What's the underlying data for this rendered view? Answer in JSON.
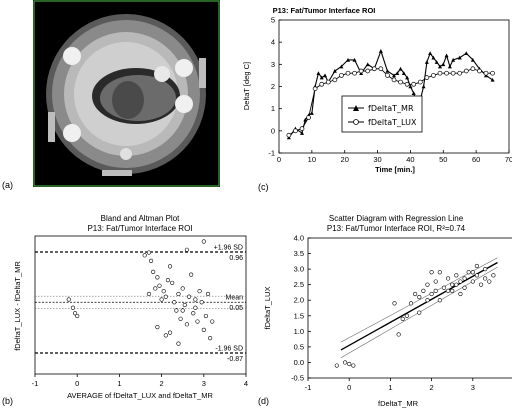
{
  "panels": {
    "a": "(a)",
    "b": "(b)",
    "c": "(c)",
    "d": "(d)"
  },
  "chart_data": [
    {
      "id": "c",
      "type": "line",
      "title": "P13: Fat/Tumor Interface ROI",
      "xlabel": "Time [min.]",
      "ylabel": "DeltaT [deg C]",
      "xlim": [
        0,
        70
      ],
      "ylim": [
        -1,
        5
      ],
      "xticks": [
        0,
        10,
        20,
        30,
        40,
        50,
        60,
        70
      ],
      "yticks": [
        -1,
        0,
        1,
        2,
        3,
        4,
        5
      ],
      "legend_position": "center-right",
      "series": [
        {
          "name": "fDeltaT_MR",
          "marker": "triangle",
          "x": [
            3,
            5,
            7,
            8,
            9,
            10,
            11,
            12,
            13,
            14,
            15,
            17,
            19,
            21,
            23,
            25,
            27,
            29,
            31,
            33,
            35,
            36,
            37,
            38,
            39,
            40,
            41,
            42,
            43,
            44,
            45,
            46,
            47,
            48,
            49,
            50,
            51,
            52,
            53,
            55,
            57,
            59,
            61,
            63,
            65
          ],
          "y": [
            -0.3,
            0.1,
            -0.1,
            0.5,
            0.7,
            0.8,
            2.0,
            2.6,
            2.4,
            2.5,
            2.2,
            2.7,
            2.9,
            3.2,
            3.2,
            2.6,
            3.0,
            2.8,
            3.6,
            2.7,
            2.5,
            2.6,
            2.8,
            2.6,
            2.4,
            2.0,
            1.7,
            1.2,
            1.4,
            2.0,
            3.1,
            3.5,
            3.3,
            3.1,
            2.9,
            3.0,
            3.4,
            2.9,
            3.2,
            3.3,
            3.5,
            3.2,
            2.8,
            2.5,
            2.3
          ]
        },
        {
          "name": "fDeltaT_LUX",
          "marker": "circle",
          "x": [
            3,
            5,
            7,
            9,
            11,
            13,
            15,
            17,
            19,
            21,
            23,
            25,
            27,
            29,
            31,
            33,
            35,
            37,
            39,
            41,
            43,
            45,
            47,
            49,
            51,
            53,
            55,
            57,
            59,
            61,
            63,
            65
          ],
          "y": [
            -0.2,
            0.0,
            0.1,
            0.6,
            1.9,
            2.1,
            2.2,
            2.3,
            2.5,
            2.6,
            2.6,
            2.7,
            2.7,
            2.8,
            2.8,
            2.5,
            2.3,
            2.2,
            2.1,
            2.1,
            2.2,
            2.4,
            2.5,
            2.6,
            2.6,
            2.6,
            2.6,
            2.7,
            2.8,
            2.7,
            2.6,
            2.6
          ]
        }
      ]
    },
    {
      "id": "b",
      "type": "scatter",
      "title": "Bland and Altman Plot",
      "subtitle": "P13: Fat/Tumor Interface ROI",
      "xlabel": "AVERAGE of fDeltaT_LUX and fDeltaT_MR",
      "ylabel": "fDeltaT_LUX - fDeltaT_MR",
      "xlim": [
        -1,
        4
      ],
      "ylim": [
        -1.25,
        1.25
      ],
      "xticks": [
        -1,
        0,
        1,
        2,
        3,
        4
      ],
      "reference_lines": [
        {
          "label": "+1.96 SD",
          "value": 0.96
        },
        {
          "label": "Mean",
          "value": 0.05
        },
        {
          "label": "-1.96 SD",
          "value": -0.87
        }
      ],
      "points": [
        [
          -0.2,
          0.1
        ],
        [
          -0.1,
          -0.05
        ],
        [
          -0.05,
          -0.15
        ],
        [
          0.0,
          -0.2
        ],
        [
          1.6,
          0.9
        ],
        [
          1.7,
          0.95
        ],
        [
          1.75,
          0.8
        ],
        [
          1.8,
          0.6
        ],
        [
          1.85,
          0.3
        ],
        [
          1.9,
          0.5
        ],
        [
          1.95,
          0.35
        ],
        [
          2.0,
          0.1
        ],
        [
          2.05,
          0.25
        ],
        [
          2.1,
          0.15
        ],
        [
          2.15,
          0.45
        ],
        [
          2.2,
          0.7
        ],
        [
          2.25,
          0.4
        ],
        [
          2.3,
          0.05
        ],
        [
          2.35,
          -0.1
        ],
        [
          2.4,
          0.2
        ],
        [
          2.45,
          -0.25
        ],
        [
          2.5,
          0.3
        ],
        [
          2.55,
          0.0
        ],
        [
          2.6,
          -0.35
        ],
        [
          2.65,
          0.15
        ],
        [
          2.7,
          0.55
        ],
        [
          2.75,
          -0.15
        ],
        [
          2.8,
          0.1
        ],
        [
          2.85,
          -0.3
        ],
        [
          2.9,
          0.25
        ],
        [
          2.95,
          0.05
        ],
        [
          3.0,
          -0.45
        ],
        [
          3.05,
          -0.2
        ],
        [
          3.1,
          0.2
        ],
        [
          3.15,
          -0.6
        ],
        [
          3.2,
          -0.3
        ],
        [
          2.2,
          -0.5
        ],
        [
          2.4,
          -0.7
        ],
        [
          1.9,
          -0.4
        ],
        [
          2.6,
          1.0
        ],
        [
          2.1,
          -0.55
        ],
        [
          2.8,
          -0.05
        ],
        [
          1.7,
          0.2
        ],
        [
          3.0,
          1.15
        ],
        [
          2.5,
          -0.1
        ]
      ]
    },
    {
      "id": "d",
      "type": "scatter",
      "title": "Scatter Diagram with Regression Line",
      "subtitle": "P13: Fat/Tumor Interface ROI, R²=0.74",
      "xlabel": "fDeltaT_MR",
      "ylabel": "fDeltaT_LUX",
      "xlim": [
        -1,
        4
      ],
      "ylim": [
        -0.5,
        4.0
      ],
      "xticks": [
        -1,
        0,
        1,
        2,
        3,
        4
      ],
      "yticks": [
        -0.5,
        0.0,
        0.5,
        1.0,
        1.5,
        2.0,
        2.5,
        3.0,
        3.5,
        4.0
      ],
      "regression": {
        "intercept": 0.55,
        "slope": 0.74,
        "x_range": [
          -0.2,
          3.6
        ]
      },
      "points": [
        [
          -0.3,
          -0.1
        ],
        [
          -0.1,
          0.0
        ],
        [
          0.0,
          -0.05
        ],
        [
          0.1,
          -0.1
        ],
        [
          1.1,
          1.9
        ],
        [
          1.2,
          0.9
        ],
        [
          1.3,
          1.4
        ],
        [
          1.4,
          1.5
        ],
        [
          1.5,
          1.9
        ],
        [
          1.6,
          2.2
        ],
        [
          1.7,
          2.1
        ],
        [
          1.8,
          2.3
        ],
        [
          1.9,
          2.5
        ],
        [
          2.0,
          2.2
        ],
        [
          2.1,
          2.6
        ],
        [
          2.2,
          2.0
        ],
        [
          2.3,
          2.4
        ],
        [
          2.4,
          2.7
        ],
        [
          2.5,
          2.5
        ],
        [
          2.6,
          2.8
        ],
        [
          2.7,
          2.6
        ],
        [
          2.8,
          2.7
        ],
        [
          2.9,
          2.9
        ],
        [
          3.0,
          2.6
        ],
        [
          3.1,
          2.8
        ],
        [
          3.2,
          2.5
        ],
        [
          3.3,
          2.7
        ],
        [
          3.4,
          2.6
        ],
        [
          3.5,
          2.8
        ],
        [
          2.2,
          2.9
        ],
        [
          2.5,
          2.3
        ],
        [
          2.0,
          2.9
        ],
        [
          1.9,
          2.0
        ],
        [
          2.7,
          2.2
        ],
        [
          3.1,
          3.1
        ],
        [
          2.8,
          2.4
        ],
        [
          1.7,
          1.6
        ],
        [
          2.4,
          2.3
        ],
        [
          3.0,
          2.9
        ],
        [
          2.6,
          2.5
        ],
        [
          3.3,
          3.0
        ],
        [
          2.1,
          2.3
        ]
      ]
    }
  ]
}
